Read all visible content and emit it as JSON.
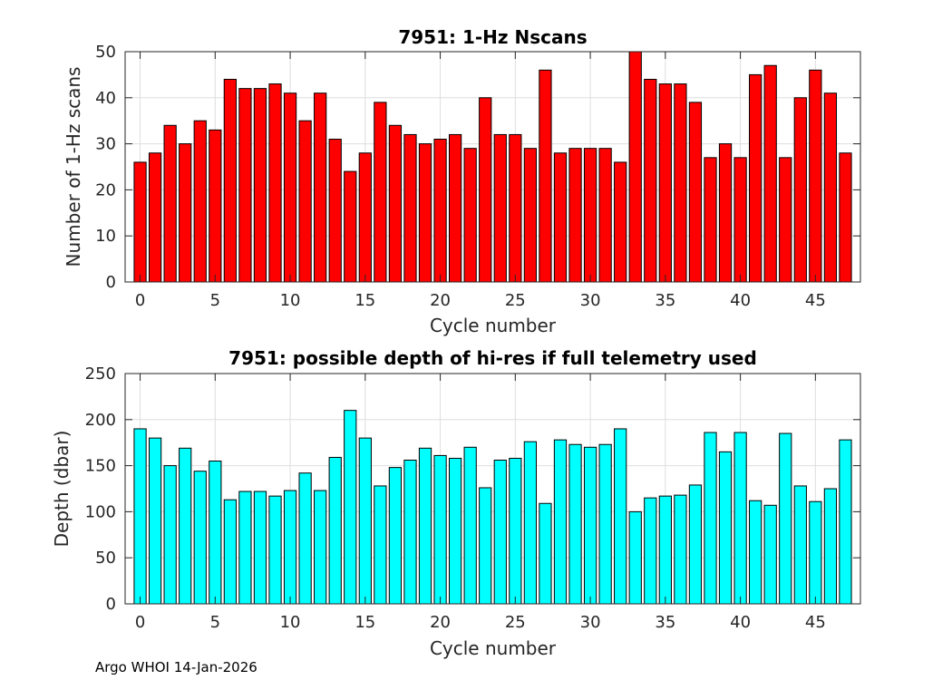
{
  "colors": {
    "top_bars": "#ff0000",
    "bottom_bars": "#00ffff"
  },
  "footer": "Argo WHOI 14-Jan-2026",
  "chart_data": [
    {
      "type": "bar",
      "title": "7951: 1-Hz Nscans",
      "xlabel": "Cycle number",
      "ylabel": "Number of 1-Hz scans",
      "xlim": [
        -1,
        48
      ],
      "ylim": [
        0,
        50
      ],
      "xticks": [
        0,
        5,
        10,
        15,
        20,
        25,
        30,
        35,
        40,
        45
      ],
      "yticks": [
        0,
        10,
        20,
        30,
        40,
        50
      ],
      "grid": true,
      "x": [
        0,
        1,
        2,
        3,
        4,
        5,
        6,
        7,
        8,
        9,
        10,
        11,
        12,
        13,
        14,
        15,
        16,
        17,
        18,
        19,
        20,
        21,
        22,
        23,
        24,
        25,
        26,
        27,
        28,
        29,
        30,
        31,
        32,
        33,
        34,
        35,
        36,
        37,
        38,
        39,
        40,
        41,
        42,
        43,
        44,
        45,
        46,
        47
      ],
      "values": [
        26,
        28,
        34,
        30,
        35,
        33,
        44,
        42,
        42,
        43,
        41,
        35,
        41,
        31,
        24,
        28,
        39,
        34,
        32,
        30,
        31,
        32,
        29,
        40,
        32,
        32,
        29,
        46,
        28,
        29,
        29,
        29,
        26,
        50,
        44,
        43,
        43,
        39,
        27,
        30,
        27,
        45,
        47,
        27,
        40,
        46,
        41,
        28
      ]
    },
    {
      "type": "bar",
      "title": "7951: possible depth of hi-res if full telemetry used",
      "xlabel": "Cycle number",
      "ylabel": "Depth (dbar)",
      "xlim": [
        -1,
        48
      ],
      "ylim": [
        0,
        250
      ],
      "xticks": [
        0,
        5,
        10,
        15,
        20,
        25,
        30,
        35,
        40,
        45
      ],
      "yticks": [
        0,
        50,
        100,
        150,
        200,
        250
      ],
      "grid": true,
      "x": [
        0,
        1,
        2,
        3,
        4,
        5,
        6,
        7,
        8,
        9,
        10,
        11,
        12,
        13,
        14,
        15,
        16,
        17,
        18,
        19,
        20,
        21,
        22,
        23,
        24,
        25,
        26,
        27,
        28,
        29,
        30,
        31,
        32,
        33,
        34,
        35,
        36,
        37,
        38,
        39,
        40,
        41,
        42,
        43,
        44,
        45,
        46,
        47
      ],
      "values": [
        190,
        180,
        150,
        169,
        144,
        155,
        113,
        122,
        122,
        117,
        123,
        142,
        123,
        159,
        210,
        180,
        128,
        148,
        156,
        169,
        161,
        158,
        170,
        126,
        156,
        158,
        176,
        109,
        178,
        173,
        170,
        173,
        190,
        100,
        115,
        117,
        118,
        129,
        186,
        165,
        186,
        112,
        107,
        185,
        128,
        111,
        125,
        178
      ]
    }
  ]
}
